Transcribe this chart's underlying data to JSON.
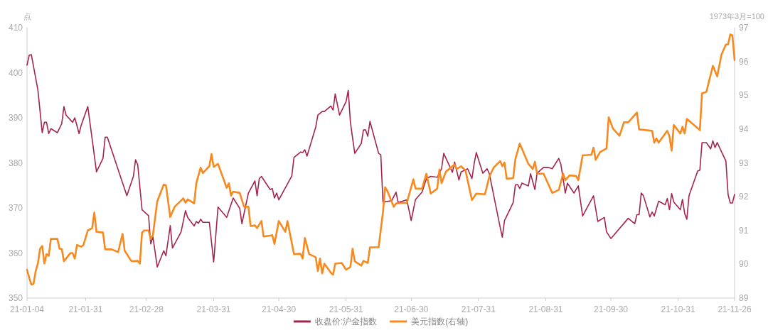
{
  "chart_data": {
    "type": "line",
    "ylabel": "点",
    "y2label": "1973年3月=100",
    "legend": "bottom",
    "xlim": [
      "--01-04",
      "--11-26"
    ],
    "xticks": [
      {
        "value": "--01-04",
        "label": "21-01-04"
      },
      {
        "value": "--01-31",
        "label": "21-01-31"
      },
      {
        "value": "--02-28",
        "label": "21-02-28"
      },
      {
        "value": "--03-31",
        "label": "21-03-31"
      },
      {
        "value": "--04-30",
        "label": "21-04-30"
      },
      {
        "value": "--05-31",
        "label": "21-05-31"
      },
      {
        "value": "--06-30",
        "label": "21-06-30"
      },
      {
        "value": "--07-31",
        "label": "21-07-31"
      },
      {
        "value": "--08-31",
        "label": "21-08-31"
      },
      {
        "value": "--09-30",
        "label": "21-09-30"
      },
      {
        "value": "--10-31",
        "label": "21-10-31"
      },
      {
        "value": "--11-26",
        "label": "21-11-26"
      }
    ],
    "ylim": [
      350,
      410
    ],
    "yticks": [
      350,
      360,
      370,
      380,
      390,
      400,
      410
    ],
    "y2lim": [
      89,
      97
    ],
    "y2ticks": [
      89,
      90,
      91,
      92,
      93,
      94,
      95,
      96,
      97
    ],
    "series": [
      {
        "name": "收盘价:沪金指数",
        "color": "#a3244f",
        "x": [
          "--01-04",
          "--01-05",
          "--01-06",
          "--01-09",
          "--01-11",
          "--01-12",
          "--01-13",
          "--01-14",
          "--01-15",
          "--01-18",
          "--01-20",
          "--01-21",
          "--01-22",
          "--01-25",
          "--01-26",
          "--01-28",
          "--01-29",
          "--02-01",
          "--02-03",
          "--02-05",
          "--02-08",
          "--02-09",
          "--02-10",
          "--02-19",
          "--02-22",
          "--02-23",
          "--02-24",
          "--02-26",
          "--03-01",
          "--03-02",
          "--03-03",
          "--03-05",
          "--03-08",
          "--03-09",
          "--03-11",
          "--03-12",
          "--03-16",
          "--03-18",
          "--03-19",
          "--03-22",
          "--03-23",
          "--03-24",
          "--03-25",
          "--03-26",
          "--03-29",
          "--03-31",
          "--04-02",
          "--04-06",
          "--04-09",
          "--04-12",
          "--04-13",
          "--04-16",
          "--04-19",
          "--04-20",
          "--04-21",
          "--04-22",
          "--04-26",
          "--04-27",
          "--04-28",
          "--04-29",
          "--04-30",
          "--05-06",
          "--05-07",
          "--05-10",
          "--05-11",
          "--05-12",
          "--05-13",
          "--05-17",
          "--05-18",
          "--05-20",
          "--05-21",
          "--05-24",
          "--05-25",
          "--05-26",
          "--05-28",
          "--05-31",
          "--06-01",
          "--06-02",
          "--06-04",
          "--06-07",
          "--06-08",
          "--06-09",
          "--06-10",
          "--06-11",
          "--06-15",
          "--06-16",
          "--06-17",
          "--06-21",
          "--06-23",
          "--06-24",
          "--06-28",
          "--06-30",
          "--07-02",
          "--07-05",
          "--07-07",
          "--07-09",
          "--07-12",
          "--07-14",
          "--07-15",
          "--07-19",
          "--07-20",
          "--07-22",
          "--07-23",
          "--07-26",
          "--07-28",
          "--07-29",
          "--07-30",
          "--08-02",
          "--08-04",
          "--08-05",
          "--08-10",
          "--08-11",
          "--08-12",
          "--08-16",
          "--08-17",
          "--08-18",
          "--08-19",
          "--08-20",
          "--08-23",
          "--08-24",
          "--08-26",
          "--08-27",
          "--08-30",
          "--09-01",
          "--09-03",
          "--09-06",
          "--09-07",
          "--09-09",
          "--09-10",
          "--09-13",
          "--09-15",
          "--09-17",
          "--09-22",
          "--09-24",
          "--09-27",
          "--09-28",
          "--09-30",
          "--10-08",
          "--10-11",
          "--10-12",
          "--10-13",
          "--10-14",
          "--10-15",
          "--10-18",
          "--10-19",
          "--10-20",
          "--10-22",
          "--10-25",
          "--10-26",
          "--10-27",
          "--10-28",
          "--10-29",
          "--11-01",
          "--11-02",
          "--11-03",
          "--11-04",
          "--11-05",
          "--11-09",
          "--11-10",
          "--11-11",
          "--11-13",
          "--11-15",
          "--11-16",
          "--11-17",
          "--11-18",
          "--11-22",
          "--11-23",
          "--11-24",
          "--11-25",
          "--11-26"
        ],
        "values": [
          401.7,
          403.9,
          404,
          396.2,
          386.7,
          389,
          389,
          386.5,
          387.6,
          386.7,
          388.7,
          392.5,
          390.6,
          389,
          390,
          386.5,
          388.4,
          392.5,
          385.3,
          378,
          381,
          385.7,
          385.7,
          372.7,
          377,
          380.7,
          379.6,
          369.6,
          368.3,
          362,
          363.6,
          356.9,
          360.5,
          359.4,
          366.1,
          361.1,
          364.7,
          369.4,
          367.9,
          366,
          367,
          366.6,
          367.5,
          366.8,
          366.8,
          358,
          370.2,
          367.9,
          372.2,
          369.9,
          366.5,
          373.3,
          376,
          372.7,
          376.5,
          377,
          374.1,
          374.3,
          372.2,
          373.3,
          371.8,
          377.1,
          381.2,
          382.4,
          382.3,
          382.9,
          381.5,
          387.9,
          390.6,
          391.4,
          391.4,
          392.6,
          391.7,
          395.3,
          390.6,
          393.6,
          396.1,
          389,
          382.1,
          384.3,
          387.3,
          387.3,
          385.9,
          389.2,
          382.1,
          381.8,
          371.3,
          371.6,
          373.5,
          371.2,
          371.8,
          367.2,
          371.9,
          373.5,
          376.5,
          377,
          376.8,
          378.7,
          382.1,
          377.9,
          380.2,
          376.2,
          378,
          378.7,
          376.5,
          379.8,
          382.3,
          377.7,
          378.7,
          377.6,
          365.7,
          363.5,
          367.2,
          371.2,
          375.1,
          375.2,
          374.3,
          375.5,
          374.9,
          377.6,
          374.1,
          377.7,
          379,
          379,
          378.7,
          381,
          379.6,
          373.3,
          375.5,
          373.3,
          374.9,
          368.2,
          372.7,
          367,
          367.9,
          364.7,
          363.2,
          367.7,
          366.5,
          368.5,
          368.5,
          373.3,
          372.7,
          368,
          369.1,
          368.2,
          371.5,
          370.7,
          372.1,
          369.6,
          373.2,
          371.3,
          369.6,
          371.9,
          368.8,
          367.5,
          372.7,
          378.2,
          378.4,
          384.5,
          384.5,
          383.1,
          384.9,
          383.4,
          384.5,
          380.4,
          373,
          371.1,
          371.1,
          373
        ]
      },
      {
        "name": "美元指数(右轴)",
        "color": "#f7891f",
        "axis": "y2",
        "x": [
          "--01-04",
          "--01-05",
          "--01-06",
          "--01-07",
          "--01-08",
          "--01-09",
          "--01-10",
          "--01-11",
          "--01-12",
          "--01-13",
          "--01-14",
          "--01-15",
          "--01-18",
          "--01-19",
          "--01-20",
          "--01-21",
          "--01-24",
          "--01-25",
          "--01-26",
          "--01-27",
          "--01-29",
          "--01-30",
          "--02-01",
          "--02-03",
          "--02-04",
          "--02-05",
          "--02-08",
          "--02-09",
          "--02-12",
          "--02-15",
          "--02-17",
          "--02-18",
          "--02-21",
          "--02-22",
          "--02-24",
          "--02-25",
          "--02-26",
          "--02-27",
          "--03-01",
          "--03-02",
          "--03-03",
          "--03-05",
          "--03-08",
          "--03-09",
          "--03-10",
          "--03-11",
          "--03-13",
          "--03-17",
          "--03-18",
          "--03-19",
          "--03-22",
          "--03-23",
          "--03-25",
          "--03-26",
          "--03-29",
          "--03-30",
          "--03-31",
          "--04-02",
          "--04-06",
          "--04-07",
          "--04-08",
          "--04-09",
          "--04-12",
          "--04-14",
          "--04-16",
          "--04-17",
          "--04-19",
          "--04-20",
          "--04-22",
          "--04-23",
          "--04-27",
          "--04-28",
          "--04-30",
          "--05-03",
          "--05-04",
          "--05-07",
          "--05-10",
          "--05-11",
          "--05-12",
          "--05-14",
          "--05-17",
          "--05-18",
          "--05-19",
          "--05-20",
          "--05-21",
          "--05-24",
          "--05-25",
          "--05-26",
          "--05-29",
          "--05-31",
          "--06-02",
          "--06-03",
          "--06-04",
          "--06-07",
          "--06-08",
          "--06-10",
          "--06-11",
          "--06-15",
          "--06-17",
          "--06-18",
          "--06-19",
          "--06-22",
          "--06-23",
          "--06-28",
          "--07-01",
          "--07-02",
          "--07-05",
          "--07-07",
          "--07-09",
          "--07-12",
          "--07-13",
          "--07-14",
          "--07-16",
          "--07-20",
          "--07-21",
          "--07-23",
          "--07-25",
          "--07-28",
          "--07-30",
          "--08-03",
          "--08-05",
          "--08-07",
          "--08-10",
          "--08-11",
          "--08-12",
          "--08-13",
          "--08-16",
          "--08-17",
          "--08-19",
          "--08-23",
          "--08-25",
          "--08-26",
          "--08-27",
          "--08-30",
          "--09-03",
          "--09-06",
          "--09-08",
          "--09-09",
          "--09-11",
          "--09-14",
          "--09-15",
          "--09-17",
          "--09-21",
          "--09-22",
          "--09-23",
          "--09-25",
          "--09-28",
          "--09-29",
          "--10-01",
          "--10-04",
          "--10-06",
          "--10-08",
          "--10-12",
          "--10-13",
          "--10-19",
          "--10-20",
          "--10-21",
          "--10-22",
          "--10-26",
          "--10-27",
          "--10-28",
          "--10-29",
          "--11-01",
          "--11-02",
          "--11-03",
          "--11-04",
          "--11-10",
          "--11-11",
          "--11-13",
          "--11-16",
          "--11-18",
          "--11-20",
          "--11-22",
          "--11-23",
          "--11-24",
          "--11-25",
          "--11-26"
        ],
        "values": [
          89.84,
          89.6,
          89.4,
          89.42,
          89.8,
          90.02,
          90.46,
          90.54,
          90.02,
          90.3,
          90.25,
          90.75,
          90.75,
          90.46,
          90.45,
          90.09,
          90.33,
          90.33,
          90.17,
          90.57,
          90.52,
          90.57,
          91,
          91.07,
          91.53,
          90.96,
          90.94,
          90.44,
          90.44,
          90.36,
          90.9,
          90.4,
          90.1,
          90.09,
          90.1,
          90.02,
          90.94,
          91,
          91,
          90.75,
          90.86,
          91.86,
          92.36,
          92.34,
          91.86,
          91.4,
          91.7,
          91.95,
          91.82,
          91.92,
          91.8,
          92.4,
          92.86,
          92.7,
          92.9,
          93.26,
          92.88,
          92.97,
          92.26,
          92.4,
          92.03,
          92.15,
          92.11,
          91.7,
          91.7,
          91.13,
          91.15,
          91.07,
          91.28,
          90.82,
          90.86,
          90.6,
          91.28,
          90.96,
          91.28,
          90.3,
          90.31,
          90.17,
          90.78,
          90.3,
          90.21,
          89.8,
          90.17,
          89.73,
          90.02,
          89.75,
          89.69,
          90.02,
          90.04,
          89.84,
          89.92,
          90.46,
          90.09,
          89.96,
          90.1,
          90.04,
          90.5,
          90.5,
          91.55,
          92.28,
          92.17,
          91.7,
          91.8,
          91.82,
          92.51,
          92.24,
          92.24,
          92.68,
          92.09,
          92.24,
          92.8,
          92.4,
          92.74,
          92.95,
          92.82,
          92.9,
          92.78,
          91.9,
          92.09,
          92.07,
          92.59,
          92.86,
          93.05,
          92.9,
          93.01,
          92.53,
          92.55,
          93.11,
          93.57,
          92.97,
          92.82,
          93.03,
          92.68,
          92.68,
          92.11,
          92.2,
          92.68,
          92.49,
          92.63,
          92.61,
          92.49,
          93.22,
          93.24,
          93.45,
          93.09,
          93.32,
          93.43,
          94.35,
          94.01,
          93.8,
          94.2,
          94.2,
          94.49,
          93.99,
          93.95,
          93.6,
          93.72,
          93.6,
          93.95,
          93.78,
          93.36,
          94.12,
          93.87,
          94.07,
          93.87,
          94.3,
          93.97,
          95.06,
          95.1,
          95.87,
          95.56,
          96.21,
          96.5,
          96.5,
          96.8,
          96.77,
          96.04
        ]
      }
    ]
  }
}
